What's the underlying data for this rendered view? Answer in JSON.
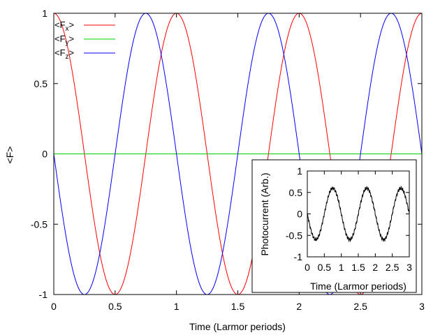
{
  "chart_data": [
    {
      "type": "line",
      "title": "",
      "xlabel": "Time (Larmor periods)",
      "ylabel": "<F>",
      "xlim": [
        0,
        3
      ],
      "ylim": [
        -1,
        1
      ],
      "xticks": [
        0,
        0.5,
        1,
        1.5,
        2,
        2.5,
        3
      ],
      "xtick_labels": [
        "0",
        "0.5",
        "1",
        "1.5",
        "2",
        "2.5",
        "3"
      ],
      "yticks": [
        -1,
        -0.5,
        0,
        0.5,
        1
      ],
      "ytick_labels": [
        "-1",
        "-0.5",
        "0",
        "0.5",
        "1"
      ],
      "grid": false,
      "legend_position": "top-left",
      "series": [
        {
          "name": "<Fx>",
          "legend_main": "<F",
          "legend_sub": "x",
          "legend_tail": ">",
          "color": "#ff0000",
          "model": "cos",
          "amplitude": 1,
          "period": 1,
          "phase": 0,
          "offset": 0
        },
        {
          "name": "<Fy>",
          "legend_main": "<F",
          "legend_sub": "y",
          "legend_tail": ">",
          "color": "#00cc00",
          "model": "const",
          "amplitude": 0,
          "period": 1,
          "phase": 0,
          "offset": 0
        },
        {
          "name": "<Fz>",
          "legend_main": "<F",
          "legend_sub": "z",
          "legend_tail": ">",
          "color": "#0000ff",
          "model": "sin",
          "amplitude": -1,
          "period": 1,
          "phase": 0,
          "offset": 0
        }
      ]
    },
    {
      "type": "line",
      "title": "",
      "xlabel": "Time (Larmor periods)",
      "ylabel": "Photocurrent (Arb.)",
      "xlim": [
        0,
        3
      ],
      "ylim": [
        -1,
        1
      ],
      "xticks": [
        0,
        0.5,
        1,
        1.5,
        2,
        2.5,
        3
      ],
      "xtick_labels": [
        "0",
        "0.5",
        "1",
        "1.5",
        "2",
        "2.5",
        "3"
      ],
      "yticks": [
        -1,
        -0.5,
        0,
        0.5,
        1
      ],
      "ytick_labels": [
        "-1",
        "-0.5",
        "0",
        "0.5",
        "1"
      ],
      "grid": false,
      "legend_position": "none",
      "series": [
        {
          "name": "photocurrent",
          "color": "#000000",
          "model": "sin",
          "amplitude": -0.6,
          "period": 1,
          "phase": 0,
          "offset": 0
        }
      ]
    }
  ]
}
